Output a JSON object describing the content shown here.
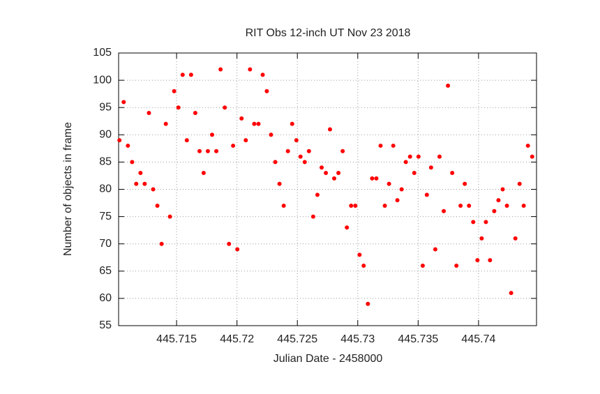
{
  "chart_data": {
    "type": "scatter",
    "title": "RIT Obs 12-inch UT Nov 23 2018",
    "xlabel": "Julian Date - 2458000",
    "ylabel": "Number of objects in frame",
    "xlim": [
      445.7102,
      445.7448
    ],
    "ylim": [
      55,
      105
    ],
    "xticks": [
      445.715,
      445.72,
      445.725,
      445.73,
      445.735,
      445.74
    ],
    "yticks": [
      55,
      60,
      65,
      70,
      75,
      80,
      85,
      90,
      95,
      100,
      105
    ],
    "grid": true,
    "color": "#ff0000",
    "x": [
      445.71027,
      445.71062,
      445.71097,
      445.71132,
      445.71166,
      445.71201,
      445.71236,
      445.71271,
      445.71306,
      445.71341,
      445.71376,
      445.71411,
      445.71445,
      445.7148,
      445.71515,
      445.7155,
      445.71585,
      445.7162,
      445.71655,
      445.7169,
      445.71724,
      445.71759,
      445.71794,
      445.71829,
      445.71864,
      445.71899,
      445.71934,
      445.71968,
      445.72003,
      445.72038,
      445.72073,
      445.72108,
      445.72143,
      445.72178,
      445.72213,
      445.72247,
      445.72282,
      445.72317,
      445.72352,
      445.72387,
      445.72422,
      445.72457,
      445.72492,
      445.72526,
      445.72561,
      445.72596,
      445.72631,
      445.72666,
      445.72701,
      445.72736,
      445.7277,
      445.72805,
      445.7284,
      445.72875,
      445.7291,
      445.72945,
      445.7298,
      445.73015,
      445.73049,
      445.73084,
      445.73119,
      445.73154,
      445.73189,
      445.73224,
      445.73259,
      445.73294,
      445.73328,
      445.73363,
      445.73398,
      445.73433,
      445.73468,
      445.73503,
      445.73538,
      445.73572,
      445.73607,
      445.73642,
      445.73677,
      445.73712,
      445.73747,
      445.73782,
      445.73817,
      445.73851,
      445.73886,
      445.73921,
      445.73956,
      445.73991,
      445.74026,
      445.74061,
      445.74095,
      445.7413,
      445.74165,
      445.742,
      445.74235,
      445.7427,
      445.74305,
      445.7434,
      445.74374,
      445.74409,
      445.74444
    ],
    "values": [
      89,
      96,
      88,
      85,
      81,
      83,
      81,
      94,
      80,
      77,
      70,
      92,
      75,
      98,
      95,
      101,
      89,
      101,
      94,
      87,
      83,
      87,
      90,
      87,
      102,
      95,
      70,
      88,
      69,
      93,
      89,
      102,
      92,
      92,
      101,
      98,
      90,
      85,
      81,
      77,
      87,
      92,
      89,
      86,
      85,
      87,
      75,
      79,
      84,
      83,
      91,
      82,
      83,
      87,
      73,
      77,
      77,
      68,
      66,
      59,
      82,
      82,
      88,
      77,
      81,
      88,
      78,
      80,
      85,
      86,
      83,
      86,
      66,
      79,
      84,
      69,
      86,
      76,
      99,
      83,
      66,
      77,
      81,
      77,
      74,
      67,
      71,
      74,
      67,
      76,
      78,
      80,
      77,
      61,
      71,
      81,
      77,
      88,
      86
    ]
  }
}
